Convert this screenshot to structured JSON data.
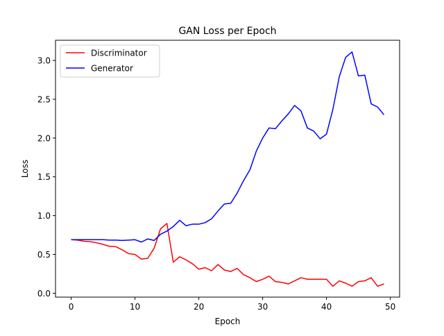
{
  "chart_data": {
    "type": "line",
    "title": "GAN Loss per Epoch",
    "xlabel": "Epoch",
    "ylabel": "Loss",
    "xlim": [
      -2.45,
      51.45
    ],
    "ylim": [
      -0.05,
      3.26
    ],
    "xticks": [
      0,
      10,
      20,
      30,
      40,
      50
    ],
    "yticks": [
      0.0,
      0.5,
      1.0,
      1.5,
      2.0,
      2.5,
      3.0
    ],
    "xtick_labels": [
      "0",
      "10",
      "20",
      "30",
      "40",
      "50"
    ],
    "ytick_labels": [
      "0.0",
      "0.5",
      "1.0",
      "1.5",
      "2.0",
      "2.5",
      "3.0"
    ],
    "grid": false,
    "legend_position": "top-left",
    "x": [
      0,
      1,
      2,
      3,
      4,
      5,
      6,
      7,
      8,
      9,
      10,
      11,
      12,
      13,
      14,
      15,
      16,
      17,
      18,
      19,
      20,
      21,
      22,
      23,
      24,
      25,
      26,
      27,
      28,
      29,
      30,
      31,
      32,
      33,
      34,
      35,
      36,
      37,
      38,
      39,
      40,
      41,
      42,
      43,
      44,
      45,
      46,
      47,
      48,
      49
    ],
    "series": [
      {
        "name": "Discriminator",
        "color": "#ff0000",
        "values": [
          0.69,
          0.685,
          0.67,
          0.665,
          0.65,
          0.63,
          0.605,
          0.6,
          0.56,
          0.51,
          0.5,
          0.44,
          0.45,
          0.58,
          0.83,
          0.9,
          0.4,
          0.47,
          0.43,
          0.38,
          0.31,
          0.33,
          0.29,
          0.37,
          0.3,
          0.28,
          0.32,
          0.24,
          0.2,
          0.15,
          0.18,
          0.22,
          0.15,
          0.14,
          0.12,
          0.16,
          0.2,
          0.18,
          0.18,
          0.18,
          0.18,
          0.09,
          0.16,
          0.13,
          0.09,
          0.15,
          0.16,
          0.2,
          0.09,
          0.12
        ]
      },
      {
        "name": "Generator",
        "color": "#0000ff",
        "values": [
          0.69,
          0.69,
          0.69,
          0.69,
          0.69,
          0.69,
          0.685,
          0.685,
          0.68,
          0.685,
          0.69,
          0.66,
          0.7,
          0.68,
          0.76,
          0.8,
          0.86,
          0.94,
          0.87,
          0.89,
          0.89,
          0.91,
          0.96,
          1.06,
          1.15,
          1.16,
          1.29,
          1.45,
          1.59,
          1.83,
          2.0,
          2.13,
          2.12,
          2.22,
          2.31,
          2.42,
          2.35,
          2.13,
          2.09,
          1.99,
          2.05,
          2.37,
          2.79,
          3.04,
          3.11,
          2.8,
          2.81,
          2.44,
          2.4,
          2.3
        ]
      }
    ]
  }
}
